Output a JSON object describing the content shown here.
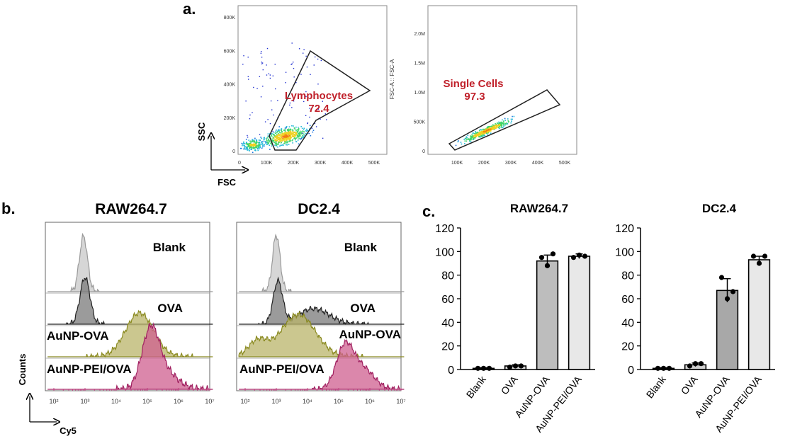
{
  "panels": {
    "a": "a.",
    "b": "b.",
    "c": "c."
  },
  "flow": {
    "plot1": {
      "xlabel": "FSC",
      "ylabel": "SSC",
      "yticks": [
        "0",
        "200K",
        "400K",
        "600K",
        "800K"
      ],
      "xticks": [
        "0",
        "100K",
        "200K",
        "300K",
        "400K",
        "500K"
      ],
      "gate_name": "Lymphocytes",
      "gate_value": "72.4"
    },
    "plot2": {
      "ylabel": "FSC-A :: FSC-A",
      "yticks": [
        "0",
        "500K",
        "1.0M",
        "1.5M",
        "2.0M"
      ],
      "xticks": [
        "100K",
        "200K",
        "300K",
        "400K",
        "500K"
      ],
      "gate_name": "Single Cells",
      "gate_value": "97.3"
    }
  },
  "histograms": {
    "title_left": "RAW264.7",
    "title_right": "DC2.4",
    "ylabel": "Counts",
    "xlabel": "Cy5",
    "ticks_left": [
      "10²",
      "10³",
      "10⁴",
      "10⁵",
      "10⁶",
      "10⁷"
    ],
    "ticks_right": [
      "10²",
      "10³",
      "10⁴",
      "10⁵",
      "10⁶",
      "10⁷"
    ],
    "labels_left": [
      "Blank",
      "OVA",
      "AuNP-OVA",
      "AuNP-PEI/OVA"
    ],
    "labels_right": [
      "Blank",
      "OVA",
      "AuNP-OVA",
      "AuNP-PEI/OVA"
    ],
    "colors": [
      "#c8c8c8",
      "#7a7a7a",
      "#b9b46a",
      "#cf5f8f"
    ]
  },
  "chart_data": [
    {
      "type": "bar",
      "title": "RAW264.7",
      "categories": [
        "Blank",
        "OVA",
        "AuNP-OVA",
        "AuNP-PEI/OVA"
      ],
      "values": [
        1,
        3,
        92,
        96
      ],
      "errors": [
        0.5,
        1,
        5,
        2
      ],
      "points": [
        [
          1,
          1,
          1
        ],
        [
          2,
          3,
          3
        ],
        [
          95,
          88,
          98
        ],
        [
          95,
          97,
          96
        ]
      ],
      "ylim": [
        0,
        120
      ],
      "yticks": [
        "0",
        "20",
        "40",
        "60",
        "80",
        "100",
        "120"
      ],
      "bar_colors": [
        "#d0d0d0",
        "#d0d0d0",
        "#bdbdbd",
        "#e8e8e8"
      ]
    },
    {
      "type": "bar",
      "title": "DC2.4",
      "categories": [
        "Blank",
        "OVA",
        "AuNP-OVA",
        "AuNP-PEI/OVA"
      ],
      "values": [
        1,
        4,
        67,
        93
      ],
      "errors": [
        0.5,
        1.5,
        10,
        3
      ],
      "points": [
        [
          1,
          1,
          1
        ],
        [
          3,
          5,
          5
        ],
        [
          78,
          60,
          66
        ],
        [
          96,
          90,
          96
        ]
      ],
      "ylim": [
        0,
        120
      ],
      "yticks": [
        "0",
        "20",
        "40",
        "60",
        "80",
        "100",
        "120"
      ],
      "bar_colors": [
        "#d0d0d0",
        "#d0d0d0",
        "#a8a8a8",
        "#e8e8e8"
      ]
    }
  ]
}
